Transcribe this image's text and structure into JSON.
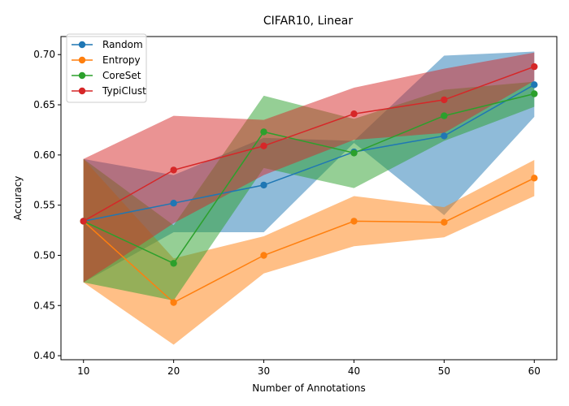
{
  "chart_data": {
    "type": "line",
    "title": "CIFAR10, Linear",
    "xlabel": "Number of Annotations",
    "ylabel": "Accuracy",
    "x": [
      10,
      20,
      30,
      40,
      50,
      60
    ],
    "xticks": [
      "10",
      "20",
      "30",
      "40",
      "50",
      "60"
    ],
    "yticks": [
      "0.40",
      "0.45",
      "0.50",
      "0.55",
      "0.60",
      "0.65",
      "0.70"
    ],
    "xlim": [
      7.5,
      62.5
    ],
    "ylim": [
      0.396,
      0.718
    ],
    "legend_position": "top-left",
    "grid": false,
    "series": [
      {
        "name": "Random",
        "color": "#1f77b4",
        "values": [
          0.534,
          0.552,
          0.57,
          0.603,
          0.619,
          0.67
        ],
        "band_low": [
          0.473,
          0.523,
          0.523,
          0.612,
          0.54,
          0.638
        ],
        "band_high": [
          0.596,
          0.58,
          0.617,
          0.614,
          0.699,
          0.703
        ]
      },
      {
        "name": "Entropy",
        "color": "#ff7f0e",
        "values": [
          0.534,
          0.453,
          0.5,
          0.534,
          0.533,
          0.577
        ],
        "band_low": [
          0.473,
          0.411,
          0.482,
          0.509,
          0.518,
          0.559
        ],
        "band_high": [
          0.596,
          0.497,
          0.519,
          0.559,
          0.548,
          0.595
        ]
      },
      {
        "name": "CoreSet",
        "color": "#2ca02c",
        "values": [
          0.534,
          0.492,
          0.623,
          0.602,
          0.639,
          0.661
        ],
        "band_low": [
          0.473,
          0.455,
          0.587,
          0.567,
          0.614,
          0.648
        ],
        "band_high": [
          0.596,
          0.53,
          0.659,
          0.636,
          0.665,
          0.673
        ]
      },
      {
        "name": "TypiClust",
        "color": "#d62728",
        "values": [
          0.534,
          0.585,
          0.609,
          0.641,
          0.655,
          0.688
        ],
        "band_low": [
          0.473,
          0.532,
          0.58,
          0.615,
          0.622,
          0.674
        ],
        "band_high": [
          0.596,
          0.639,
          0.635,
          0.667,
          0.686,
          0.702
        ]
      }
    ]
  }
}
